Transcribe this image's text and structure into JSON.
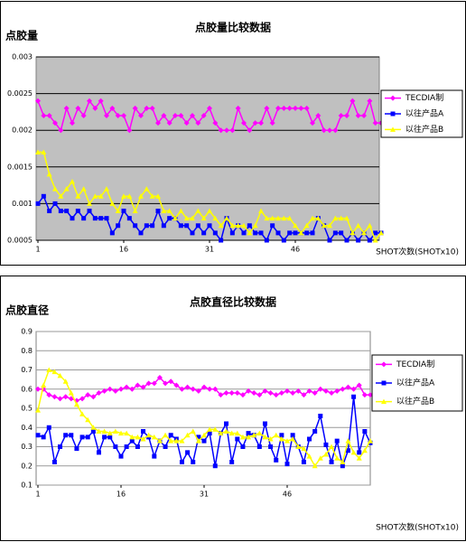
{
  "chart_data": [
    {
      "type": "line",
      "title": "点胶量比较数据",
      "y_label": "点胶量",
      "x_label": "SHOT次数(SHOTx10)",
      "x": [
        1,
        2,
        3,
        4,
        5,
        6,
        7,
        8,
        9,
        10,
        11,
        12,
        13,
        14,
        15,
        16,
        17,
        18,
        19,
        20,
        21,
        22,
        23,
        24,
        25,
        26,
        27,
        28,
        29,
        30,
        31,
        32,
        33,
        34,
        35,
        36,
        37,
        38,
        39,
        40,
        41,
        42,
        43,
        44,
        45,
        46,
        47,
        48,
        49,
        50,
        51,
        52,
        53,
        54,
        55,
        56,
        57,
        58,
        59,
        60,
        61
      ],
      "xlim": [
        1,
        61
      ],
      "xticks": [
        1,
        16,
        31,
        46
      ],
      "ylim": [
        0.0005,
        0.003
      ],
      "yticks": [
        0.0005,
        0.001,
        0.0015,
        0.002,
        0.0025,
        0.003
      ],
      "grid": true,
      "series": [
        {
          "name": "TECDIA制",
          "color": "#ff00ff",
          "marker": "diamond",
          "values": [
            0.0024,
            0.0022,
            0.0022,
            0.0021,
            0.002,
            0.0023,
            0.0021,
            0.0023,
            0.0022,
            0.0024,
            0.0023,
            0.0024,
            0.0022,
            0.0023,
            0.0022,
            0.0022,
            0.002,
            0.0023,
            0.0022,
            0.0023,
            0.0023,
            0.0021,
            0.0022,
            0.0021,
            0.0022,
            0.0022,
            0.0021,
            0.0022,
            0.0021,
            0.0022,
            0.0023,
            0.0021,
            0.002,
            0.002,
            0.002,
            0.0023,
            0.0021,
            0.002,
            0.0021,
            0.0021,
            0.0023,
            0.0021,
            0.0023,
            0.0023,
            0.0023,
            0.0023,
            0.0023,
            0.0023,
            0.0021,
            0.0022,
            0.002,
            0.002,
            0.002,
            0.0022,
            0.0022,
            0.0024,
            0.0022,
            0.0022,
            0.0024,
            0.0021,
            0.0021
          ]
        },
        {
          "name": "以往产品A",
          "color": "#0000ff",
          "marker": "square",
          "values": [
            0.001,
            0.0011,
            0.0009,
            0.001,
            0.0009,
            0.0009,
            0.0008,
            0.0009,
            0.0008,
            0.0009,
            0.0008,
            0.0008,
            0.0008,
            0.0006,
            0.0007,
            0.0009,
            0.0008,
            0.0007,
            0.0006,
            0.0007,
            0.0007,
            0.0009,
            0.0007,
            0.0008,
            0.0008,
            0.0007,
            0.0007,
            0.0006,
            0.0007,
            0.0006,
            0.0007,
            0.0006,
            0.0005,
            0.0008,
            0.0006,
            0.0007,
            0.0006,
            0.0007,
            0.0006,
            0.0006,
            0.0005,
            0.0007,
            0.0006,
            0.0005,
            0.0006,
            0.0006,
            0.0006,
            0.0006,
            0.0006,
            0.0008,
            0.0007,
            0.0005,
            0.0006,
            0.0006,
            0.0005,
            0.0006,
            0.0005,
            0.0006,
            0.0005,
            0.0006,
            0.0006
          ]
        },
        {
          "name": "以往产品B",
          "color": "#ffff00",
          "marker": "triangle",
          "values": [
            0.0017,
            0.0017,
            0.0014,
            0.0012,
            0.0011,
            0.0012,
            0.0013,
            0.0011,
            0.0012,
            0.001,
            0.0011,
            0.0011,
            0.0012,
            0.001,
            0.0009,
            0.0011,
            0.0011,
            0.0009,
            0.0011,
            0.0012,
            0.0011,
            0.0011,
            0.0009,
            0.0009,
            0.0008,
            0.0009,
            0.0008,
            0.0008,
            0.0009,
            0.0008,
            0.0009,
            0.0008,
            0.0007,
            0.0008,
            0.0007,
            0.0007,
            0.0007,
            0.0006,
            0.0007,
            0.0009,
            0.0008,
            0.0008,
            0.0008,
            0.0008,
            0.0008,
            0.0007,
            0.0006,
            0.0007,
            0.0008,
            0.0008,
            0.0007,
            0.0007,
            0.0008,
            0.0008,
            0.0008,
            0.0006,
            0.0007,
            0.0006,
            0.0007,
            0.0005,
            0.0006
          ]
        }
      ]
    },
    {
      "type": "line",
      "title": "点胶直径比较数据",
      "y_label": "点胶直径",
      "x_label": "SHOT次数(SHOTx10)",
      "x": [
        1,
        2,
        3,
        4,
        5,
        6,
        7,
        8,
        9,
        10,
        11,
        12,
        13,
        14,
        15,
        16,
        17,
        18,
        19,
        20,
        21,
        22,
        23,
        24,
        25,
        26,
        27,
        28,
        29,
        30,
        31,
        32,
        33,
        34,
        35,
        36,
        37,
        38,
        39,
        40,
        41,
        42,
        43,
        44,
        45,
        46,
        47,
        48,
        49,
        50,
        51,
        52,
        53,
        54,
        55,
        56,
        57,
        58,
        59,
        60,
        61
      ],
      "xlim": [
        1,
        61
      ],
      "xticks": [
        1,
        16,
        31,
        46
      ],
      "ylim": [
        0.1,
        0.9
      ],
      "yticks": [
        0.1,
        0.2,
        0.3,
        0.4,
        0.5,
        0.6,
        0.7,
        0.8,
        0.9
      ],
      "grid": true,
      "series": [
        {
          "name": "TECDIA制",
          "color": "#ff00ff",
          "marker": "diamond",
          "values": [
            0.6,
            0.6,
            0.57,
            0.56,
            0.55,
            0.56,
            0.55,
            0.54,
            0.55,
            0.57,
            0.56,
            0.58,
            0.59,
            0.6,
            0.59,
            0.6,
            0.61,
            0.6,
            0.62,
            0.61,
            0.63,
            0.63,
            0.66,
            0.63,
            0.64,
            0.62,
            0.6,
            0.61,
            0.6,
            0.59,
            0.61,
            0.6,
            0.6,
            0.57,
            0.58,
            0.58,
            0.58,
            0.57,
            0.59,
            0.58,
            0.57,
            0.59,
            0.58,
            0.57,
            0.58,
            0.59,
            0.58,
            0.59,
            0.57,
            0.59,
            0.58,
            0.6,
            0.59,
            0.58,
            0.59,
            0.6,
            0.61,
            0.6,
            0.62,
            0.57,
            0.57
          ]
        },
        {
          "name": "以往产品A",
          "color": "#0000ff",
          "marker": "square",
          "values": [
            0.36,
            0.35,
            0.4,
            0.22,
            0.3,
            0.36,
            0.36,
            0.29,
            0.35,
            0.35,
            0.38,
            0.27,
            0.35,
            0.35,
            0.3,
            0.25,
            0.3,
            0.33,
            0.3,
            0.38,
            0.35,
            0.25,
            0.33,
            0.3,
            0.36,
            0.34,
            0.22,
            0.27,
            0.22,
            0.35,
            0.33,
            0.37,
            0.2,
            0.37,
            0.42,
            0.22,
            0.34,
            0.3,
            0.37,
            0.36,
            0.3,
            0.42,
            0.3,
            0.23,
            0.36,
            0.21,
            0.36,
            0.3,
            0.22,
            0.34,
            0.38,
            0.46,
            0.31,
            0.22,
            0.33,
            0.2,
            0.28,
            0.56,
            0.27,
            0.38,
            0.32
          ]
        },
        {
          "name": "以往产品B",
          "color": "#ffff00",
          "marker": "triangle",
          "values": [
            0.49,
            0.62,
            0.7,
            0.69,
            0.67,
            0.64,
            0.58,
            0.52,
            0.47,
            0.44,
            0.4,
            0.38,
            0.38,
            0.37,
            0.38,
            0.37,
            0.37,
            0.35,
            0.35,
            0.34,
            0.36,
            0.35,
            0.33,
            0.36,
            0.33,
            0.33,
            0.33,
            0.36,
            0.38,
            0.33,
            0.36,
            0.39,
            0.39,
            0.37,
            0.38,
            0.37,
            0.37,
            0.35,
            0.35,
            0.36,
            0.37,
            0.35,
            0.34,
            0.36,
            0.34,
            0.33,
            0.34,
            0.3,
            0.29,
            0.25,
            0.2,
            0.24,
            0.26,
            0.3,
            0.24,
            0.22,
            0.33,
            0.27,
            0.24,
            0.28,
            0.33
          ]
        }
      ]
    }
  ]
}
